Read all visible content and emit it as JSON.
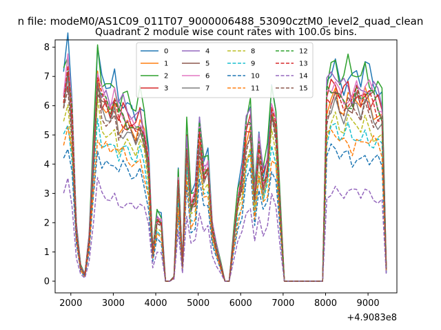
{
  "figure": {
    "suptitle": "n file: modeM0/AS1C09_011T07_9000006488_53090cztM0_level2_quad_clean"
  },
  "chart_data": {
    "type": "line",
    "title": "Quadrant 2 module wise count rates with 100.0s bins.",
    "xlabel": "",
    "ylabel": "",
    "x_offset_label": "+4.9083e8",
    "xlim": [
      1630,
      9680
    ],
    "ylim": [
      -0.4,
      8.25
    ],
    "xticks": [
      2000,
      3000,
      4000,
      5000,
      6000,
      7000,
      8000,
      9000
    ],
    "xtick_labels": [
      "2000",
      "3000",
      "4000",
      "5000",
      "6000",
      "7000",
      "8000",
      "9000"
    ],
    "yticks": [
      0,
      1,
      2,
      3,
      4,
      5,
      6,
      7,
      8
    ],
    "ytick_labels": [
      "0",
      "1",
      "2",
      "3",
      "4",
      "5",
      "6",
      "7",
      "8"
    ],
    "grid": false,
    "legend": {
      "position": "top-center",
      "columns": 4
    },
    "x": [
      1830,
      1930,
      2030,
      2130,
      2230,
      2330,
      2430,
      2530,
      2630,
      2730,
      2830,
      2930,
      3030,
      3130,
      3230,
      3330,
      3430,
      3530,
      3630,
      3730,
      3830,
      3930,
      4030,
      4130,
      4230,
      4330,
      4430,
      4530,
      4630,
      4730,
      4830,
      4930,
      5030,
      5130,
      5230,
      5330,
      5430,
      5530,
      5630,
      5730,
      5830,
      5930,
      6030,
      6130,
      6230,
      6330,
      6430,
      6530,
      6630,
      6730,
      6830,
      6930,
      7030,
      7930,
      8030,
      8130,
      8230,
      8330,
      8430,
      8530,
      8630,
      8730,
      8830,
      8930,
      9030,
      9130,
      9230,
      9330,
      9430
    ],
    "base_profile": [
      0.88,
      1.0,
      0.78,
      0.25,
      0.07,
      0.03,
      0.2,
      0.58,
      0.97,
      0.86,
      0.85,
      0.82,
      0.86,
      0.78,
      0.8,
      0.78,
      0.75,
      0.73,
      0.78,
      0.7,
      0.55,
      0.14,
      0.3,
      0.28,
      0,
      0,
      0.02,
      0.48,
      0.08,
      0.66,
      0.36,
      0.4,
      0.72,
      0.52,
      0.55,
      0.26,
      0.16,
      0.08,
      0,
      0,
      0.2,
      0.38,
      0.48,
      0.72,
      0.77,
      0.4,
      0.65,
      0.48,
      0.55,
      0.82,
      0.74,
      0.35,
      0,
      0,
      0.88,
      0.92,
      0.94,
      0.88,
      0.87,
      0.9,
      0.86,
      0.9,
      0.86,
      0.91,
      0.88,
      0.86,
      0.84,
      0.81,
      0.06
    ],
    "series": [
      {
        "name": "0",
        "color": "#1f77b4",
        "dashed": false,
        "scale": 7.9,
        "noise_phase": 0
      },
      {
        "name": "1",
        "color": "#ff7f0e",
        "dashed": false,
        "scale": 6.9,
        "noise_phase": 1
      },
      {
        "name": "2",
        "color": "#2ca02c",
        "dashed": false,
        "scale": 8.0,
        "noise_phase": 2
      },
      {
        "name": "3",
        "color": "#d62728",
        "dashed": false,
        "scale": 7.2,
        "noise_phase": 3
      },
      {
        "name": "4",
        "color": "#9467bd",
        "dashed": false,
        "scale": 7.5,
        "noise_phase": 4
      },
      {
        "name": "5",
        "color": "#8c564b",
        "dashed": false,
        "scale": 7.0,
        "noise_phase": 5
      },
      {
        "name": "6",
        "color": "#e377c2",
        "dashed": false,
        "scale": 7.3,
        "noise_phase": 6
      },
      {
        "name": "7",
        "color": "#7f7f7f",
        "dashed": false,
        "scale": 6.6,
        "noise_phase": 7
      },
      {
        "name": "8",
        "color": "#bcbd22",
        "dashed": true,
        "scale": 6.0,
        "noise_phase": 8
      },
      {
        "name": "9",
        "color": "#17becf",
        "dashed": true,
        "scale": 5.6,
        "noise_phase": 9
      },
      {
        "name": "10",
        "color": "#1f77b4",
        "dashed": true,
        "scale": 4.8,
        "noise_phase": 10
      },
      {
        "name": "11",
        "color": "#ff7f0e",
        "dashed": true,
        "scale": 5.4,
        "noise_phase": 11
      },
      {
        "name": "12",
        "color": "#2ca02c",
        "dashed": true,
        "scale": 7.1,
        "noise_phase": 12
      },
      {
        "name": "13",
        "color": "#d62728",
        "dashed": true,
        "scale": 7.0,
        "noise_phase": 13
      },
      {
        "name": "14",
        "color": "#9467bd",
        "dashed": true,
        "scale": 3.4,
        "noise_phase": 14
      },
      {
        "name": "15",
        "color": "#8c564b",
        "dashed": true,
        "scale": 6.6,
        "noise_phase": 15
      }
    ]
  }
}
